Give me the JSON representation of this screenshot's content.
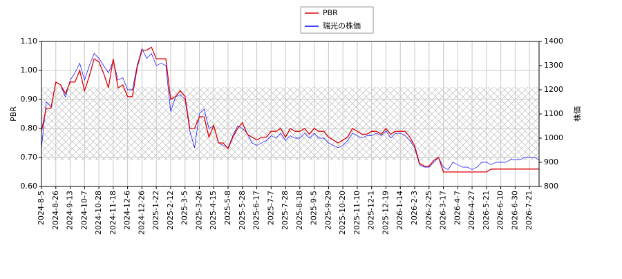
{
  "chart_data": {
    "type": "line",
    "ylabel": "PBR",
    "y2label": "株価",
    "categories": [
      "2024-8-5",
      null,
      null,
      "2024-8-26",
      null,
      null,
      "2024-9-13",
      null,
      null,
      "2024-10-7",
      null,
      null,
      "2024-10-28",
      null,
      null,
      "2024-11-18",
      null,
      null,
      "2024-12-6",
      null,
      null,
      "2024-12-26",
      null,
      null,
      "2025-1-22",
      null,
      null,
      "2025-2-12",
      null,
      null,
      "2025-3-5",
      null,
      null,
      "2025-3-26",
      null,
      null,
      "2025-4-15",
      null,
      null,
      "2025-5-8",
      null,
      null,
      "2025-5-28",
      null,
      null,
      "2025-6-17",
      null,
      null,
      "2025-7-7",
      null,
      null,
      "2025-7-28",
      null,
      null,
      "2025-8-18",
      null,
      null,
      "2025-9-5",
      null,
      null,
      "2025-9-29",
      null,
      null,
      "2025-10-20",
      null,
      null,
      "2025-11-10",
      null,
      null,
      "2025-12-1",
      null,
      null,
      "2025-12-19",
      null,
      null,
      "2026-1-14",
      null,
      null,
      "2026-2-3",
      null,
      null,
      "2026-2-25",
      null,
      null,
      "2026-3-17",
      null,
      null,
      "2026-4-7",
      null,
      null,
      "2026-4-27",
      null,
      null,
      "2026-5-21",
      null,
      null,
      "2026-6-10",
      null,
      null,
      "2026-6-30",
      null,
      null,
      "2026-7-21",
      null,
      null
    ],
    "series": [
      {
        "name": "PBR",
        "color": "#dd0000",
        "values": [
          0.79,
          0.87,
          0.87,
          0.96,
          0.95,
          0.92,
          0.96,
          0.96,
          1.0,
          0.93,
          0.98,
          1.04,
          1.03,
          0.99,
          0.94,
          1.04,
          0.94,
          0.95,
          0.91,
          0.91,
          1.01,
          1.07,
          1.07,
          1.08,
          1.04,
          1.04,
          1.04,
          0.9,
          0.91,
          0.93,
          0.91,
          0.8,
          0.8,
          0.84,
          0.84,
          0.77,
          0.81,
          0.75,
          0.75,
          0.73,
          0.77,
          0.8,
          0.82,
          0.78,
          0.77,
          0.76,
          0.77,
          0.77,
          0.79,
          0.79,
          0.8,
          0.77,
          0.8,
          0.79,
          0.79,
          0.8,
          0.78,
          0.8,
          0.79,
          0.79,
          0.77,
          0.76,
          0.75,
          0.76,
          0.77,
          0.8,
          0.79,
          0.78,
          0.78,
          0.79,
          0.79,
          0.78,
          0.8,
          0.78,
          0.79,
          0.79,
          0.79,
          0.77,
          0.74,
          0.68,
          0.67,
          0.67,
          0.69,
          0.7,
          0.65,
          0.65,
          0.65,
          0.65,
          0.65,
          0.65,
          0.65,
          0.65,
          0.65,
          0.65,
          0.66,
          0.66,
          0.66,
          0.66,
          0.66,
          0.66,
          0.66,
          0.66,
          0.66,
          0.66,
          0.66
        ]
      },
      {
        "name": "瑞光の株価",
        "color": "#0000ff",
        "axis": "y2",
        "values": [
          960,
          1150,
          1130,
          1230,
          1220,
          1170,
          1240,
          1270,
          1310,
          1240,
          1300,
          1350,
          1330,
          1300,
          1270,
          1320,
          1240,
          1250,
          1200,
          1200,
          1300,
          1370,
          1330,
          1350,
          1300,
          1310,
          1300,
          1110,
          1170,
          1180,
          1160,
          1030,
          960,
          1100,
          1120,
          1040,
          1050,
          980,
          970,
          960,
          1010,
          1050,
          1040,
          1020,
          980,
          970,
          980,
          990,
          1010,
          1000,
          1020,
          990,
          1010,
          1000,
          1000,
          1020,
          1000,
          1020,
          1000,
          1000,
          980,
          970,
          960,
          970,
          990,
          1020,
          1010,
          1000,
          1010,
          1010,
          1020,
          1010,
          1030,
          1000,
          1020,
          1020,
          1010,
          990,
          960,
          890,
          880,
          880,
          900,
          920,
          880,
          870,
          900,
          890,
          880,
          880,
          870,
          880,
          900,
          900,
          890,
          900,
          900,
          900,
          910,
          910,
          910,
          920,
          920,
          920,
          910
        ]
      }
    ],
    "ylim": [
      0.6,
      1.1
    ],
    "yticks": [
      {
        "value": 0.6,
        "label": "0.60"
      },
      {
        "value": 0.7,
        "label": "0.70"
      },
      {
        "value": 0.8,
        "label": "0.80"
      },
      {
        "value": 0.9,
        "label": "0.90"
      },
      {
        "value": 1.0,
        "label": "1.00"
      },
      {
        "value": 1.1,
        "label": "1.10"
      }
    ],
    "y2lim": [
      800,
      1400
    ],
    "y2ticks": [
      800,
      900,
      1000,
      1100,
      1200,
      1300,
      1400
    ],
    "grid": true,
    "legend": "top"
  }
}
